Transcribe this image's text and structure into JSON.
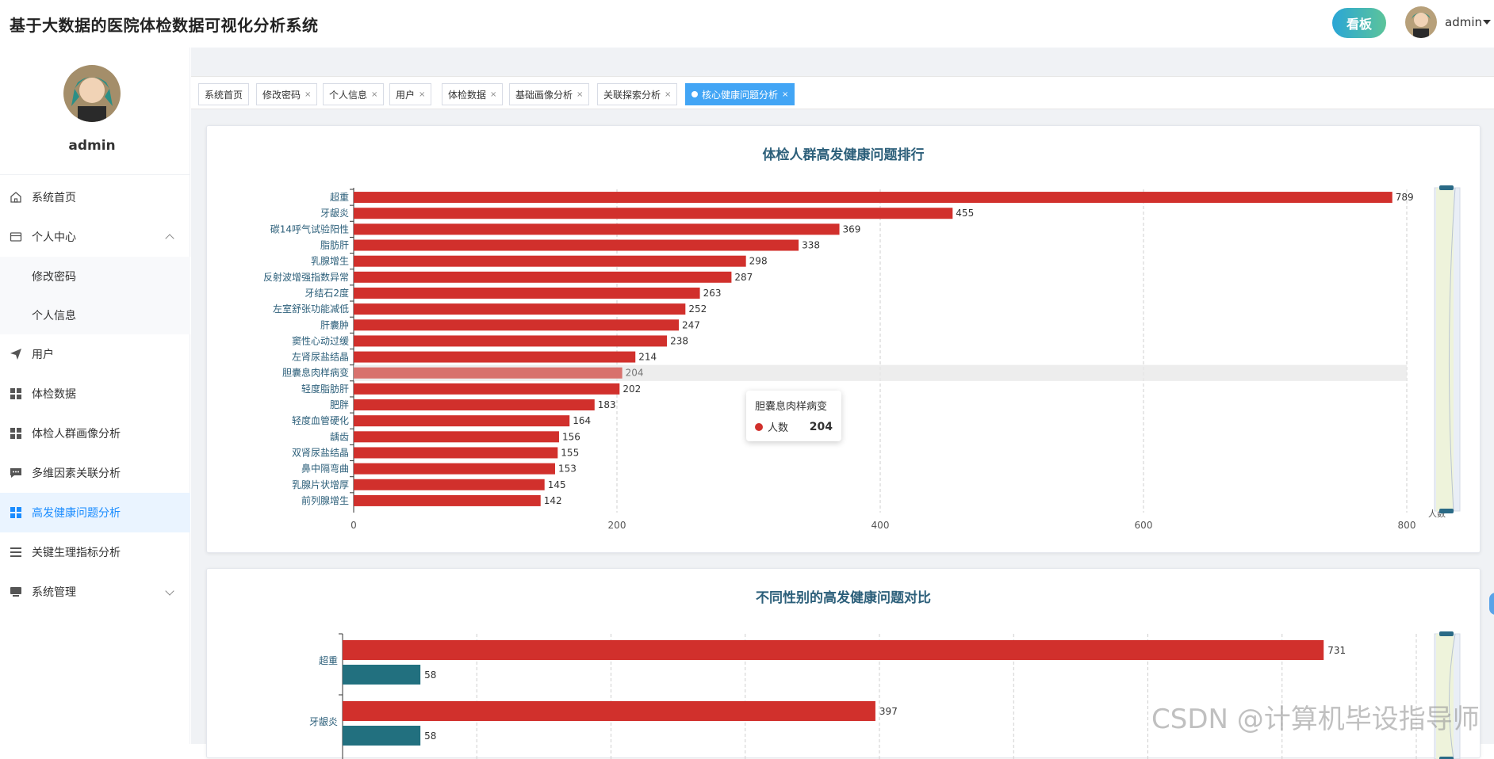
{
  "header": {
    "title": "基于大数据的医院体检数据可视化分析系统",
    "kanban_label": "看板",
    "username": "admin"
  },
  "sidebar": {
    "username": "admin",
    "items": [
      {
        "label": "系统首页",
        "icon": "home-icon"
      },
      {
        "label": "个人中心",
        "icon": "id-card-icon"
      },
      {
        "label": "修改密码",
        "icon": ""
      },
      {
        "label": "个人信息",
        "icon": ""
      },
      {
        "label": "用户",
        "icon": "paper-plane-icon"
      },
      {
        "label": "体检数据",
        "icon": "grid-icon"
      },
      {
        "label": "体检人群画像分析",
        "icon": "grid-icon"
      },
      {
        "label": "多维因素关联分析",
        "icon": "chat-icon"
      },
      {
        "label": "高发健康问题分析",
        "icon": "grid-icon"
      },
      {
        "label": "关键生理指标分析",
        "icon": "list-icon"
      },
      {
        "label": "系统管理",
        "icon": "monitor-icon"
      }
    ]
  },
  "tabs": [
    {
      "label": "系统首页",
      "closable": false
    },
    {
      "label": "修改密码",
      "closable": true
    },
    {
      "label": "个人信息",
      "closable": true
    },
    {
      "label": "用户",
      "closable": true
    },
    {
      "label": "体检数据",
      "closable": true
    },
    {
      "label": "基础画像分析",
      "closable": true
    },
    {
      "label": "关联探索分析",
      "closable": true
    },
    {
      "label": "核心健康问题分析",
      "closable": true,
      "active": true
    }
  ],
  "colors": {
    "accent": "#42a5f5",
    "bar_red": "#d1302c",
    "bar_teal": "#22707f",
    "title_blue": "#2c5f7a"
  },
  "tooltip": {
    "title": "胆囊息肉样病变",
    "series": "人数",
    "value": "204"
  },
  "watermark": "CSDN @计算机毕设指导师",
  "chart_data": [
    {
      "type": "bar",
      "orientation": "horizontal",
      "title": "体检人群高发健康问题排行",
      "categories": [
        "超重",
        "牙龈炎",
        "碳14呼气试验阳性",
        "脂肪肝",
        "乳腺增生",
        "反射波增强指数异常",
        "牙结石2度",
        "左室舒张功能减低",
        "肝囊肿",
        "窦性心动过缓",
        "左肾尿盐结晶",
        "胆囊息肉样病变",
        "轻度脂肪肝",
        "肥胖",
        "轻度血管硬化",
        "龋齿",
        "双肾尿盐结晶",
        "鼻中隔弯曲",
        "乳腺片状增厚",
        "前列腺增生"
      ],
      "values": [
        789,
        455,
        369,
        338,
        298,
        287,
        263,
        252,
        247,
        238,
        214,
        204,
        202,
        183,
        164,
        156,
        155,
        153,
        145,
        142
      ],
      "xlim": [
        0,
        800
      ],
      "xticks": [
        "0",
        "200",
        "400",
        "600",
        "800"
      ],
      "xlabel": "人数",
      "highlight_category": "胆囊息肉样病变",
      "grid": true,
      "datazoom": "right"
    },
    {
      "type": "bar",
      "orientation": "horizontal",
      "title": "不同性别的高发健康问题对比",
      "categories": [
        "超重",
        "牙龈炎"
      ],
      "series": [
        {
          "values": [
            731,
            397
          ],
          "color": "#d1302c"
        },
        {
          "values": [
            58,
            58
          ],
          "color": "#22707f"
        }
      ],
      "xlim": [
        0,
        800
      ],
      "grid": true,
      "datazoom": "right"
    }
  ]
}
